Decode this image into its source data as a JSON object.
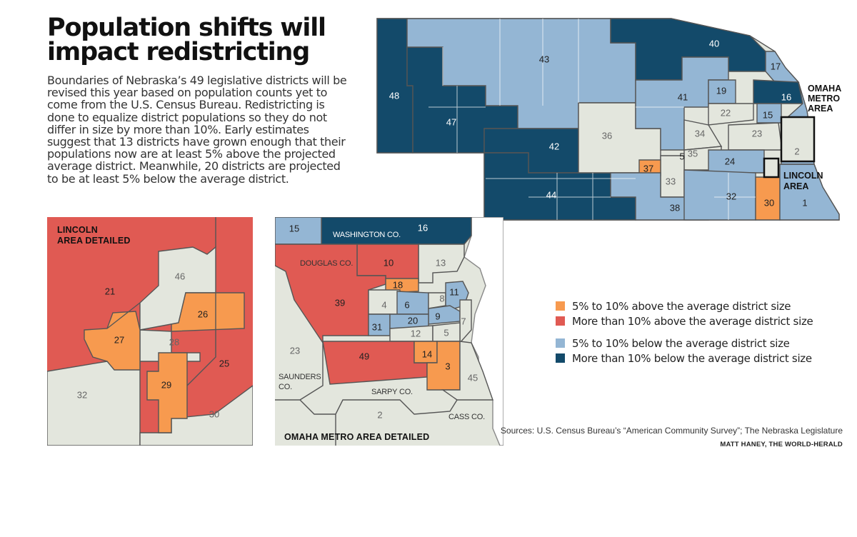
{
  "headline": "Population shifts will impact redistricting",
  "intro": "Boundaries of Nebraska’s 49 legislative districts will be revised this year based on population counts yet to come from the U.S. Census Bureau. Redistricting is done to equalize district populations so they do not differ in size by more than 10%. Early estimates suggest that 13 districts have grown enough that their populations now are at least 5% above the projected average district. Meanwhile, 20 districts are projected to be at least 5% below the average district.",
  "colors": {
    "orange": "#f79a4f",
    "red": "#e05a53",
    "light_blue": "#94b6d4",
    "dark_blue": "#134a6a",
    "neutral": "#e3e6dd",
    "border": "#555555"
  },
  "legend": [
    {
      "label": "5% to 10% above the average district size",
      "color": "#f79a4f"
    },
    {
      "label": "More than 10% above the average district size",
      "color": "#e05a53"
    },
    {
      "label": "5% to 10% below the average district size",
      "color": "#94b6d4"
    },
    {
      "label": "More than 10% below the average district size",
      "color": "#134a6a"
    }
  ],
  "state_map": {
    "district_labels": [
      "48",
      "47",
      "43",
      "42",
      "44",
      "36",
      "37",
      "38",
      "33",
      "5",
      "35",
      "34",
      "22",
      "41",
      "40",
      "19",
      "17",
      "16",
      "15",
      "23",
      "24",
      "32",
      "30",
      "1",
      "2"
    ],
    "omaha_label": "OMAHA METRO AREA",
    "lincoln_label": "LINCOLN AREA"
  },
  "lincoln_inset": {
    "title": "LINCOLN AREA DETAILED",
    "district_labels": [
      "21",
      "46",
      "26",
      "27",
      "28",
      "29",
      "25",
      "32",
      "30"
    ]
  },
  "omaha_inset": {
    "title": "OMAHA METRO AREA DETAILED",
    "counties": [
      "WASHINGTON CO.",
      "DOUGLAS CO.",
      "SAUNDERS CO.",
      "SARPY CO.",
      "CASS CO."
    ],
    "district_labels": [
      "15",
      "16",
      "10",
      "13",
      "39",
      "18",
      "4",
      "6",
      "8",
      "11",
      "9",
      "31",
      "20",
      "12",
      "5",
      "7",
      "23",
      "49",
      "14",
      "3",
      "45",
      "2"
    ]
  },
  "sources": "Sources: U.S. Census Bureau’s “American Community Survey”; The Nebraska Legislature",
  "credit": "MATT HANEY, THE WORLD-HERALD"
}
